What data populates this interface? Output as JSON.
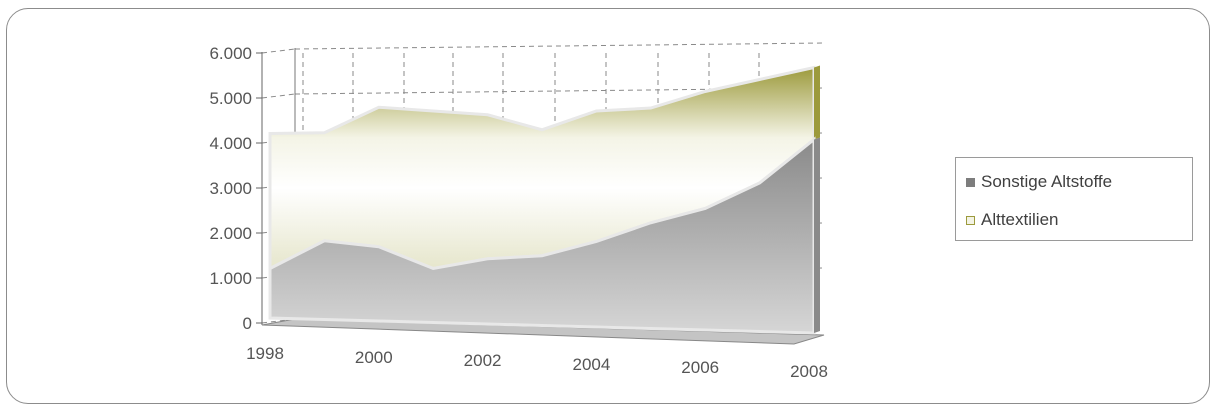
{
  "chart_data": {
    "type": "area",
    "stacked": true,
    "x": [
      1998,
      1999,
      2000,
      2001,
      2002,
      2003,
      2004,
      2005,
      2006,
      2007,
      2008
    ],
    "x_tick_labels": [
      "1998",
      "2000",
      "2002",
      "2004",
      "2006",
      "2008"
    ],
    "y_tick_labels": [
      "0",
      "1.000",
      "2.000",
      "3.000",
      "4.000",
      "5.000",
      "6.000"
    ],
    "ylim": [
      0,
      6000
    ],
    "grid": true,
    "legend_position": "right",
    "series": [
      {
        "name": "Sonstige Altstoffe",
        "values": [
          1100,
          1750,
          1650,
          1200,
          1450,
          1550,
          1900,
          2350,
          2700,
          3300,
          4300
        ],
        "color": "#9a9a9a"
      },
      {
        "name": "Alttextilien",
        "values": [
          3000,
          2400,
          3100,
          3500,
          3200,
          2800,
          2900,
          2550,
          2600,
          2300,
          1600
        ],
        "color": "#8c8a2e"
      }
    ]
  }
}
